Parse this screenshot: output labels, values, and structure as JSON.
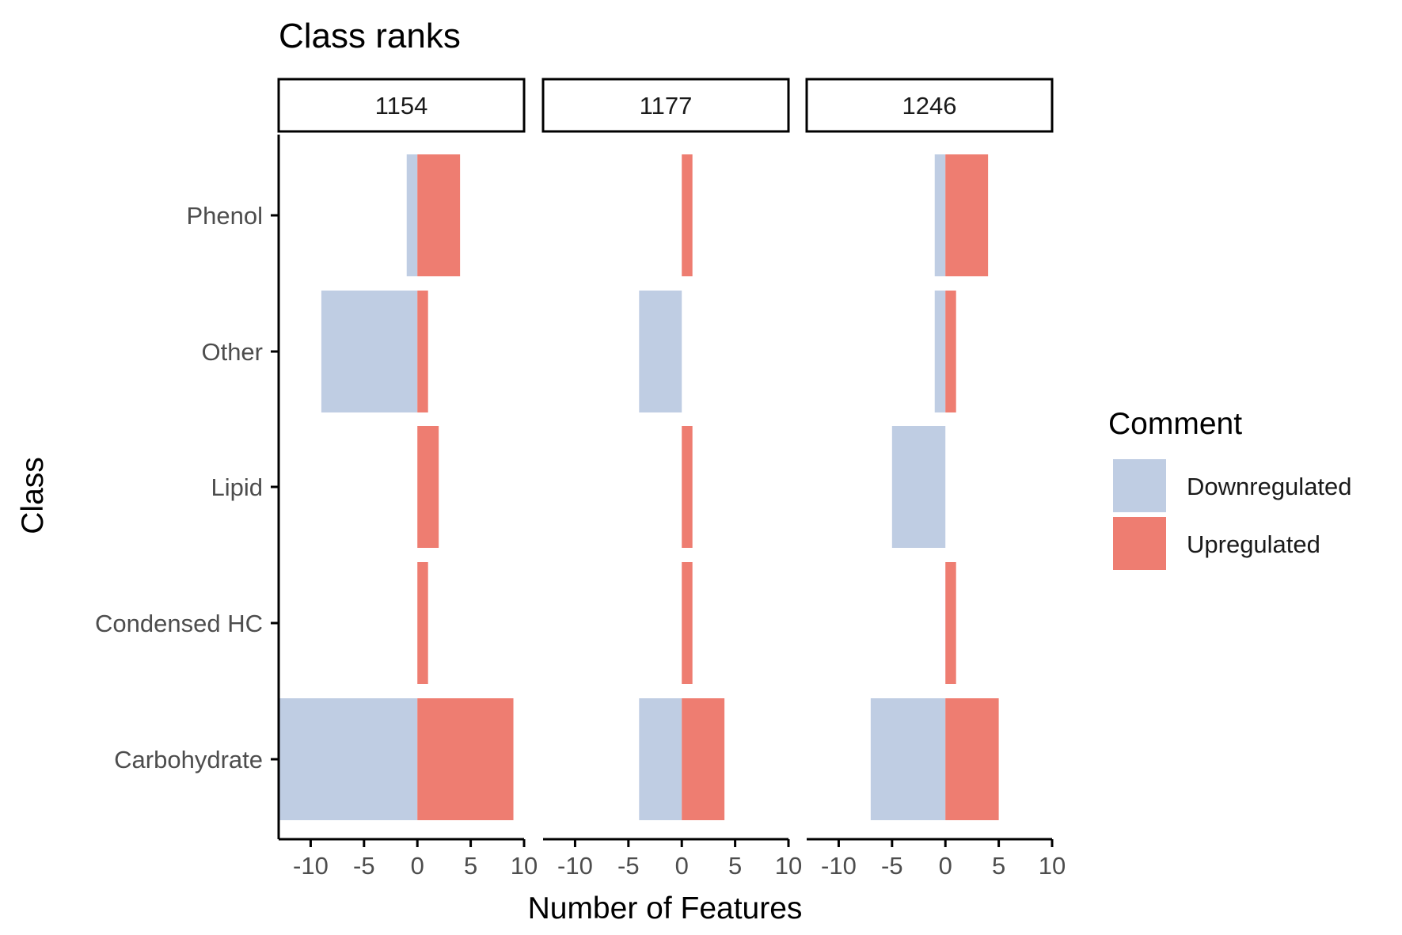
{
  "chart_data": {
    "type": "bar",
    "orientation": "horizontal",
    "title": "Class ranks",
    "xlabel": "Number of Features",
    "ylabel": "Class",
    "xlim": [
      -13,
      10
    ],
    "xticks": [
      -10,
      -5,
      0,
      5,
      10
    ],
    "xtick_labels": [
      "-10",
      "-5",
      "0",
      "5",
      "10"
    ],
    "categories": [
      "Phenol",
      "Other",
      "Lipid",
      "Condensed HC",
      "Carbohydrate"
    ],
    "legend": {
      "title": "Comment",
      "placement": "right",
      "entries": [
        {
          "name": "Downregulated",
          "color": "#bfcde3"
        },
        {
          "name": "Upregulated",
          "color": "#ee7d71"
        }
      ]
    },
    "panels": [
      {
        "label": "1154",
        "series": [
          {
            "name": "Downregulated",
            "values": [
              -1,
              -9,
              0,
              0,
              -13
            ]
          },
          {
            "name": "Upregulated",
            "values": [
              4,
              1,
              2,
              1,
              9
            ]
          }
        ]
      },
      {
        "label": "1177",
        "series": [
          {
            "name": "Downregulated",
            "values": [
              0,
              -4,
              0,
              0,
              -4
            ]
          },
          {
            "name": "Upregulated",
            "values": [
              1,
              0,
              1,
              1,
              4
            ]
          }
        ]
      },
      {
        "label": "1246",
        "series": [
          {
            "name": "Downregulated",
            "values": [
              -1,
              -1,
              -5,
              0,
              -7
            ]
          },
          {
            "name": "Upregulated",
            "values": [
              4,
              1,
              0,
              1,
              5
            ]
          }
        ]
      }
    ]
  }
}
